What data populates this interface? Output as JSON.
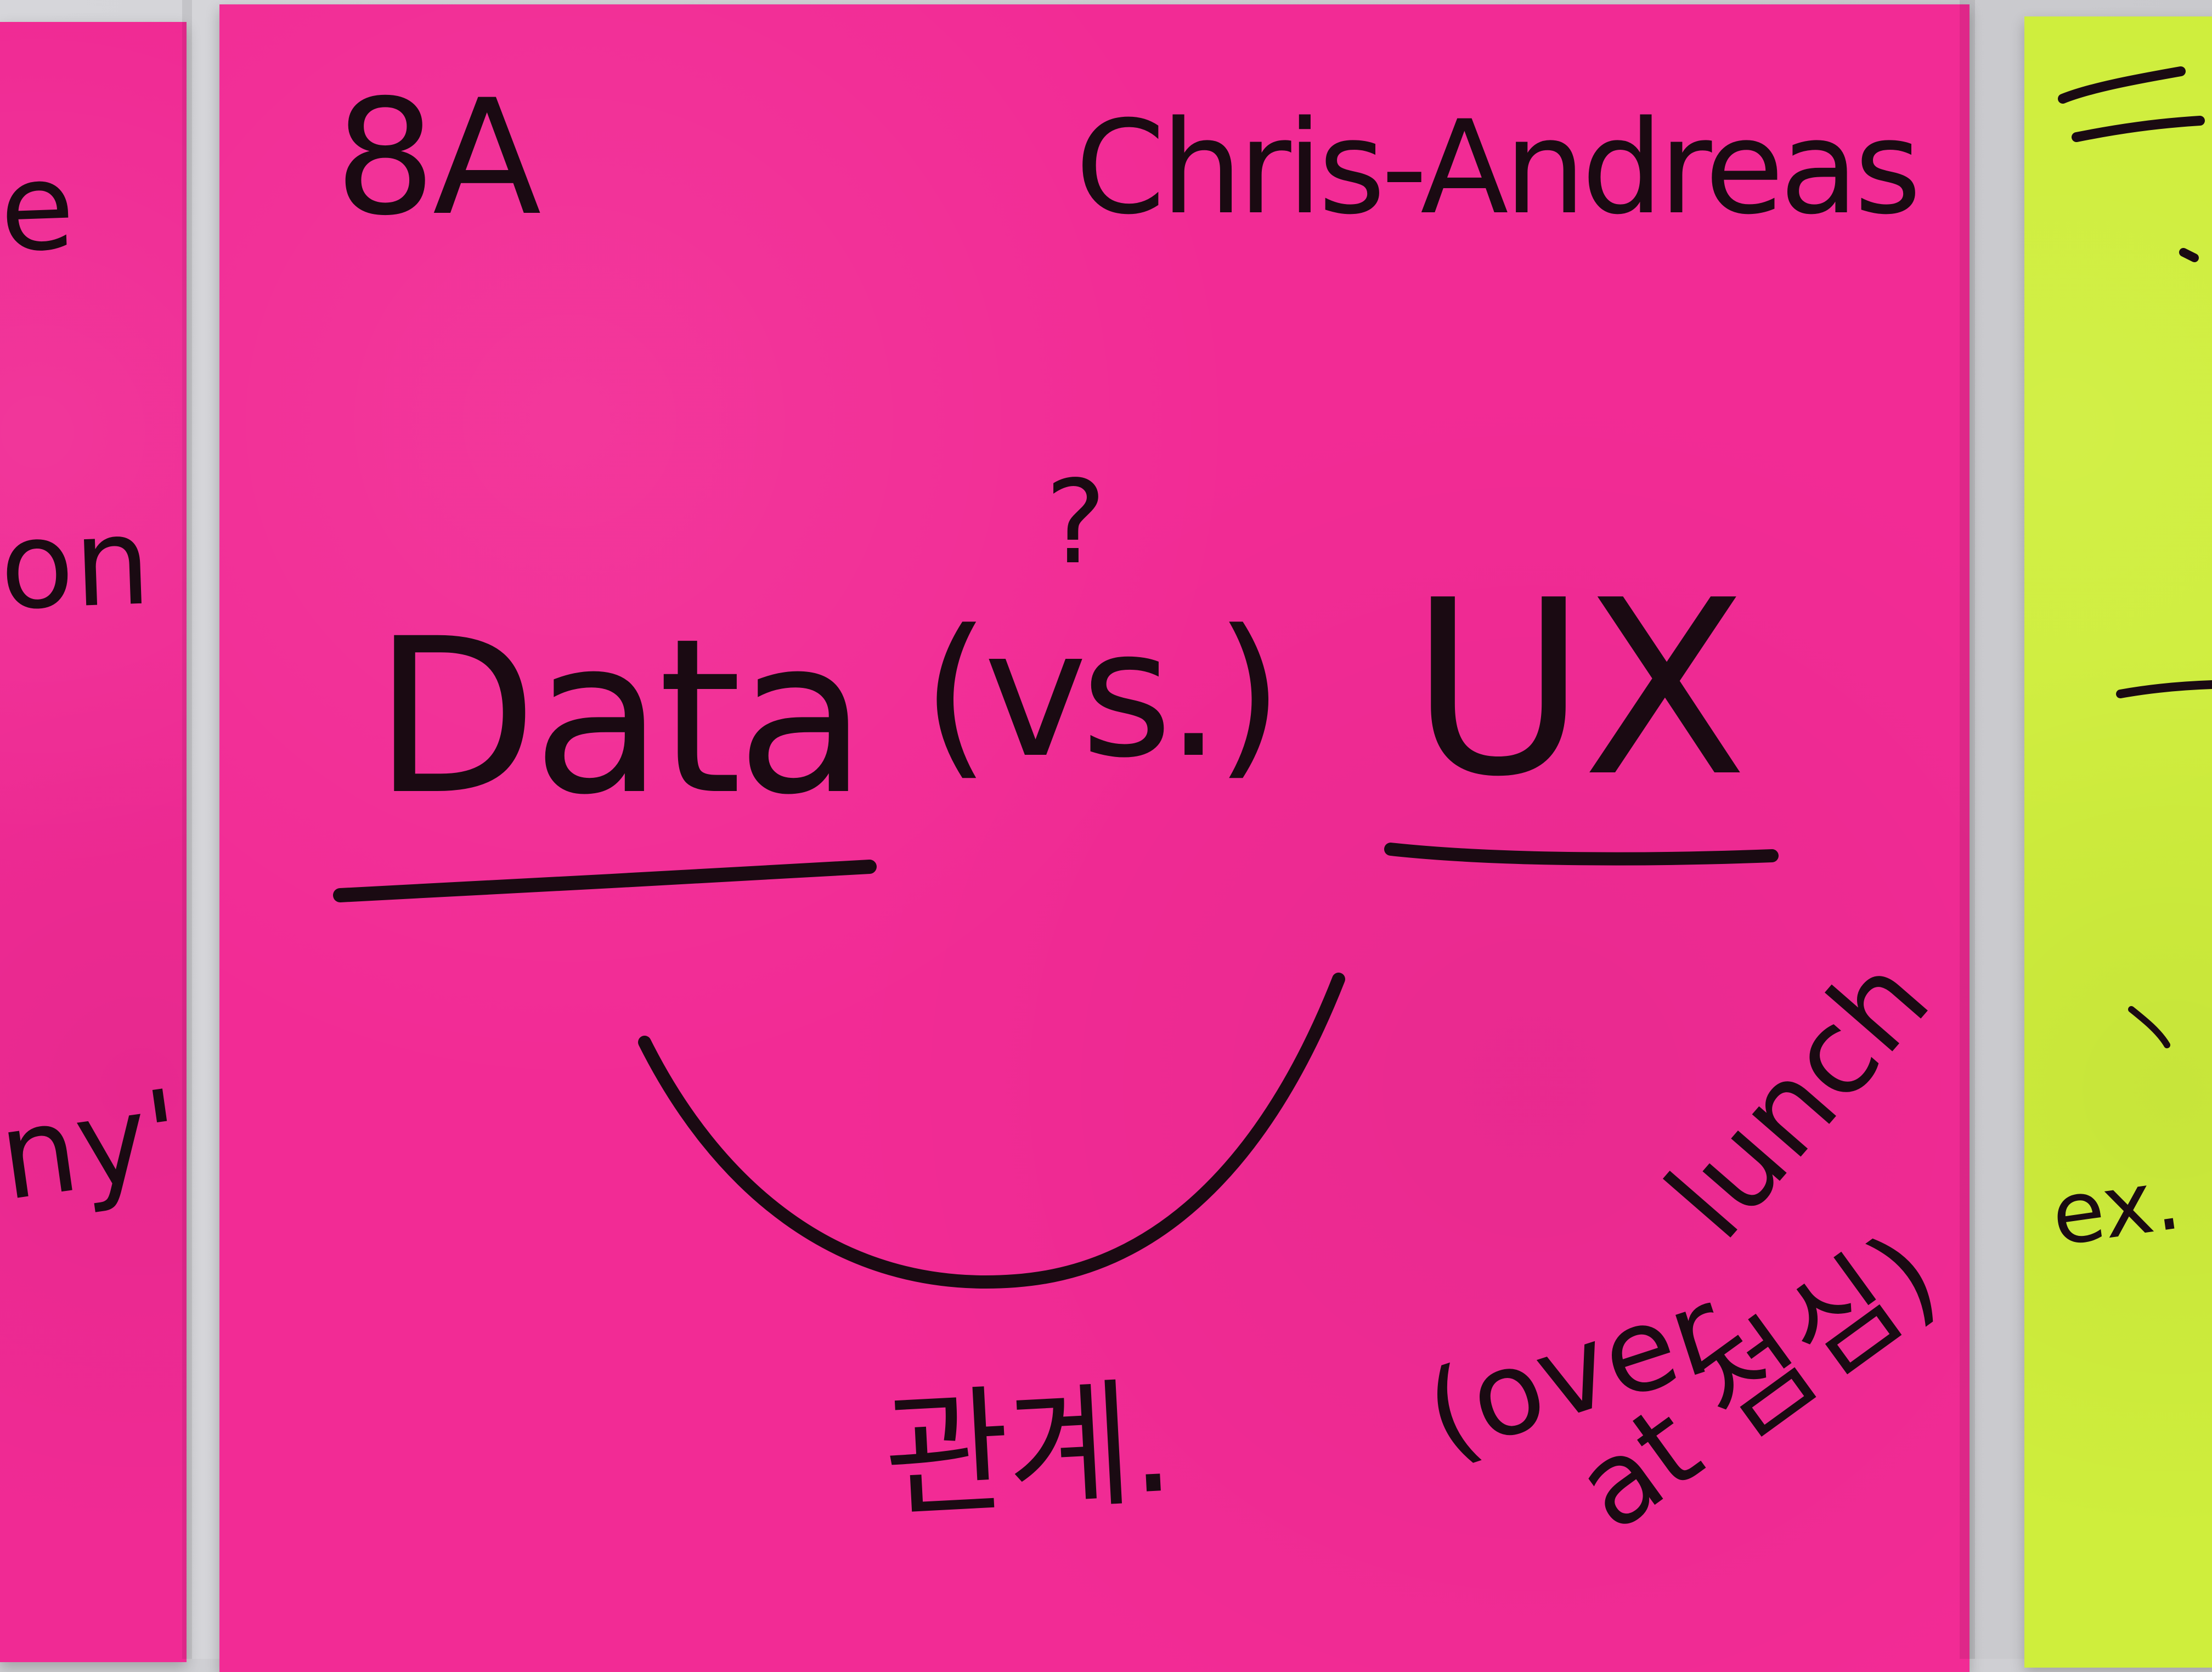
{
  "note_main": {
    "top_left": "8A",
    "top_right": "Chris-Andreas",
    "question_mark": "?",
    "left_word": "Data",
    "middle_word": "(vs.)",
    "right_word": "UX",
    "bottom_korean": "관계.",
    "bottom_english_1": "(over",
    "bottom_english_2": "lunch",
    "bottom_english_3": "at 점심)"
  },
  "note_left": {
    "fragment_1": "e",
    "fragment_2": "on",
    "fragment_3": "ny'"
  },
  "note_right": {
    "fragment_1": "ex."
  },
  "colors": {
    "main_note": "#f22b95",
    "left_note": "#f02a94",
    "right_note": "#cfee3c",
    "ink": "#1a0a12"
  }
}
